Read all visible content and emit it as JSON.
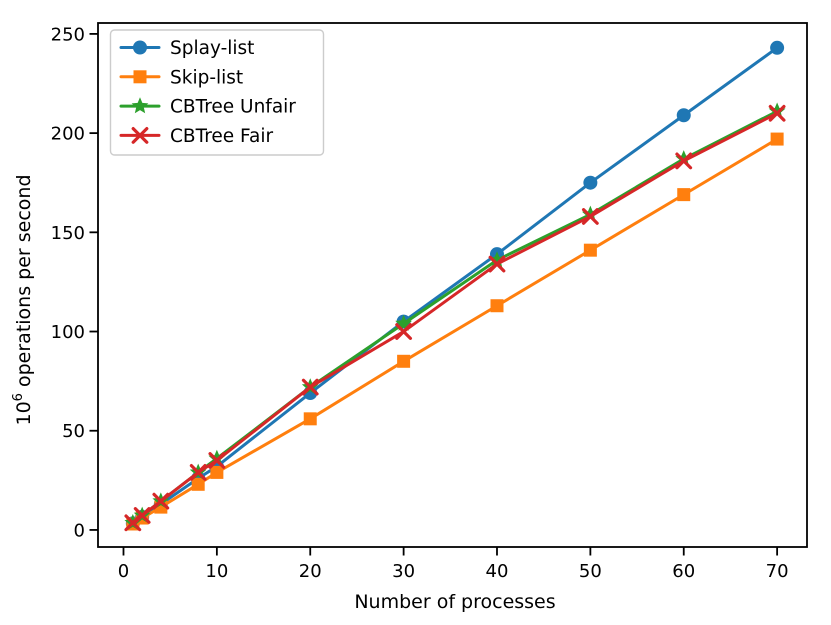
{
  "chart_data": {
    "type": "line",
    "title": "",
    "xlabel": "Number of processes",
    "ylabel_base": "10",
    "ylabel_sup": "6",
    "ylabel_rest": " operations per second",
    "grid": false,
    "legend_position": "upper-left",
    "xlim": [
      -2.73,
      73.2
    ],
    "ylim": [
      -8.6,
      255.5
    ],
    "xticks": [
      0,
      10,
      20,
      30,
      40,
      50,
      60,
      70
    ],
    "yticks": [
      0,
      50,
      100,
      150,
      200,
      250
    ],
    "x": [
      1,
      2,
      4,
      8,
      10,
      20,
      30,
      40,
      50,
      60,
      70
    ],
    "series": [
      {
        "name": "Splay-list",
        "color": "#1f77b4",
        "marker": "circle",
        "values": [
          3.3,
          6.6,
          13,
          26,
          32,
          69,
          105,
          139,
          175,
          209,
          243
        ]
      },
      {
        "name": "Skip-list",
        "color": "#ff7f0e",
        "marker": "square",
        "values": [
          3,
          6,
          11.5,
          23,
          29,
          56,
          85,
          113,
          141,
          169,
          197
        ]
      },
      {
        "name": "CBTree Unfair",
        "color": "#2ca02c",
        "marker": "star",
        "values": [
          3.6,
          7.3,
          14.5,
          29,
          36,
          72,
          104,
          136,
          159,
          187,
          211
        ]
      },
      {
        "name": "CBTree Fair",
        "color": "#d62728",
        "marker": "x",
        "values": [
          3.6,
          7.3,
          14.5,
          29,
          35,
          72,
          100,
          134,
          158,
          186,
          210
        ]
      }
    ],
    "axis_color": "#000000",
    "legend_border_color": "#cccccc",
    "legend_bg_color": "#ffffff"
  }
}
